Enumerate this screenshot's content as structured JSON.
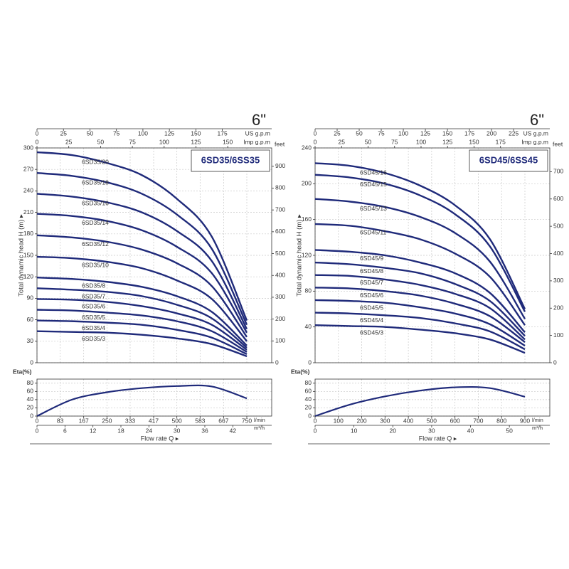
{
  "chart_data": [
    {
      "type": "line",
      "heading": "6\"",
      "title": "6SD35/6SS35",
      "y_label": "Total dynamic head H (m) ▸",
      "x_label": "Flow rate  Q ▸",
      "x": [
        0,
        125,
        250,
        375,
        500,
        625,
        750
      ],
      "x_unit": "l/min",
      "xlim": [
        0,
        750
      ],
      "xticks": [
        0,
        83,
        167,
        250,
        333,
        417,
        500,
        583,
        667,
        750
      ],
      "ylim": [
        0,
        300
      ],
      "yticks": [
        0,
        30,
        60,
        90,
        120,
        150,
        180,
        210,
        240,
        270,
        300
      ],
      "grid": true,
      "series": [
        {
          "name": "6SD35/20",
          "color": "#1f2a7a",
          "values": [
            294,
            290,
            279,
            262,
            229,
            176,
            59
          ]
        },
        {
          "name": "6SD35/18",
          "color": "#1f2a7a",
          "values": [
            265,
            261,
            252,
            236,
            207,
            159,
            53
          ]
        },
        {
          "name": "6SD35/16",
          "color": "#1f2a7a",
          "values": [
            236,
            232,
            224,
            210,
            184,
            142,
            47
          ]
        },
        {
          "name": "6SD35/14",
          "color": "#1f2a7a",
          "values": [
            208,
            205,
            198,
            185,
            162,
            125,
            42
          ]
        },
        {
          "name": "6SD35/12",
          "color": "#1f2a7a",
          "values": [
            178,
            175,
            169,
            158,
            139,
            107,
            36
          ]
        },
        {
          "name": "6SD35/10",
          "color": "#1f2a7a",
          "values": [
            148,
            146,
            141,
            132,
            115,
            89,
            30
          ]
        },
        {
          "name": "6SD35/8",
          "color": "#1f2a7a",
          "values": [
            119,
            117,
            113,
            106,
            93,
            71,
            24
          ]
        },
        {
          "name": "6SD35/7",
          "color": "#1f2a7a",
          "values": [
            104,
            102,
            99,
            93,
            81,
            62,
            21
          ]
        },
        {
          "name": "6SD35/6",
          "color": "#1f2a7a",
          "values": [
            89,
            88,
            85,
            79,
            69,
            53,
            18
          ]
        },
        {
          "name": "6SD35/5",
          "color": "#1f2a7a",
          "values": [
            74,
            73,
            70,
            66,
            58,
            44,
            15
          ]
        },
        {
          "name": "6SD35/4",
          "color": "#1f2a7a",
          "values": [
            59,
            58,
            56,
            53,
            46,
            35,
            12
          ]
        },
        {
          "name": "6SD35/3",
          "color": "#1f2a7a",
          "values": [
            44,
            43,
            42,
            39,
            34,
            26,
            9
          ]
        }
      ],
      "x2": {
        "unit": "m³/h",
        "lim": [
          0,
          45
        ],
        "ticks": [
          0,
          6,
          12,
          18,
          24,
          30,
          36,
          42
        ]
      },
      "top_axes": [
        {
          "unit": "US g.p.m",
          "lim": [
            0,
            198.1
          ],
          "ticks": [
            0,
            25,
            50,
            75,
            100,
            125,
            150,
            175
          ]
        },
        {
          "unit": "Imp g.p.m",
          "lim": [
            0,
            165
          ],
          "ticks": [
            0,
            25,
            50,
            75,
            100,
            125,
            150
          ]
        }
      ],
      "y2": {
        "unit": "feet",
        "lim": [
          0,
          984
        ],
        "ticks": [
          0,
          100,
          200,
          300,
          400,
          500,
          600,
          700,
          800,
          900
        ]
      },
      "eta": {
        "label": "Eta(%)",
        "ylim": [
          0,
          90
        ],
        "yticks": [
          0,
          20,
          40,
          60,
          80
        ],
        "color": "#1f2a7a",
        "values": [
          0,
          40,
          58,
          68,
          73,
          72,
          43
        ]
      }
    },
    {
      "type": "line",
      "heading": "6\"",
      "title": "6SD45/6SS45",
      "y_label": "Total dynamic head H (m) ▸",
      "x_label": "Flow rate  Q ▸",
      "x": [
        0,
        150,
        300,
        450,
        600,
        750,
        900
      ],
      "x_unit": "l/min",
      "xlim": [
        0,
        900
      ],
      "xticks": [
        0,
        100,
        200,
        300,
        400,
        500,
        600,
        700,
        800,
        900
      ],
      "ylim": [
        0,
        240
      ],
      "yticks": [
        0,
        40,
        80,
        120,
        160,
        200,
        240
      ],
      "grid": true,
      "series": [
        {
          "name": "6SD45/16",
          "color": "#1f2a7a",
          "values": [
            223,
            220,
            212,
            198,
            176,
            138,
            60
          ]
        },
        {
          "name": "6SD45/15",
          "color": "#1f2a7a",
          "values": [
            210,
            207,
            200,
            187,
            166,
            130,
            57
          ]
        },
        {
          "name": "6SD45/13",
          "color": "#1f2a7a",
          "values": [
            183,
            180,
            174,
            163,
            145,
            113,
            49
          ]
        },
        {
          "name": "6SD45/11",
          "color": "#1f2a7a",
          "values": [
            155,
            153,
            147,
            138,
            122,
            96,
            42
          ]
        },
        {
          "name": "6SD45/9",
          "color": "#1f2a7a",
          "values": [
            126,
            124,
            120,
            112,
            100,
            78,
            34
          ]
        },
        {
          "name": "6SD45/8",
          "color": "#1f2a7a",
          "values": [
            112,
            110,
            106,
            100,
            88,
            69,
            30
          ]
        },
        {
          "name": "6SD45/7",
          "color": "#1f2a7a",
          "values": [
            98,
            97,
            93,
            87,
            77,
            61,
            26
          ]
        },
        {
          "name": "6SD45/6",
          "color": "#1f2a7a",
          "values": [
            84,
            83,
            80,
            75,
            66,
            52,
            23
          ]
        },
        {
          "name": "6SD45/5",
          "color": "#1f2a7a",
          "values": [
            70,
            69,
            67,
            62,
            55,
            43,
            19
          ]
        },
        {
          "name": "6SD45/4",
          "color": "#1f2a7a",
          "values": [
            56,
            55,
            53,
            50,
            44,
            35,
            15
          ]
        },
        {
          "name": "6SD45/3",
          "color": "#1f2a7a",
          "values": [
            42,
            41,
            40,
            37,
            33,
            26,
            11
          ]
        }
      ],
      "x2": {
        "unit": "m³/h",
        "lim": [
          0,
          54
        ],
        "ticks": [
          0,
          10,
          20,
          30,
          40,
          50
        ]
      },
      "top_axes": [
        {
          "unit": "US g.p.m",
          "lim": [
            0,
            237.8
          ],
          "ticks": [
            0,
            25,
            50,
            75,
            100,
            125,
            150,
            175,
            200,
            225
          ]
        },
        {
          "unit": "Imp g.p.m",
          "lim": [
            0,
            198
          ],
          "ticks": [
            0,
            25,
            50,
            75,
            100,
            125,
            150,
            175
          ]
        }
      ],
      "y2": {
        "unit": "feet",
        "lim": [
          0,
          787
        ],
        "ticks": [
          0,
          100,
          200,
          300,
          400,
          500,
          600,
          700
        ]
      },
      "eta": {
        "label": "Eta(%)",
        "ylim": [
          0,
          90
        ],
        "yticks": [
          0,
          20,
          40,
          60,
          80
        ],
        "color": "#1f2a7a",
        "values": [
          0,
          28,
          48,
          62,
          70,
          68,
          47
        ]
      }
    }
  ]
}
